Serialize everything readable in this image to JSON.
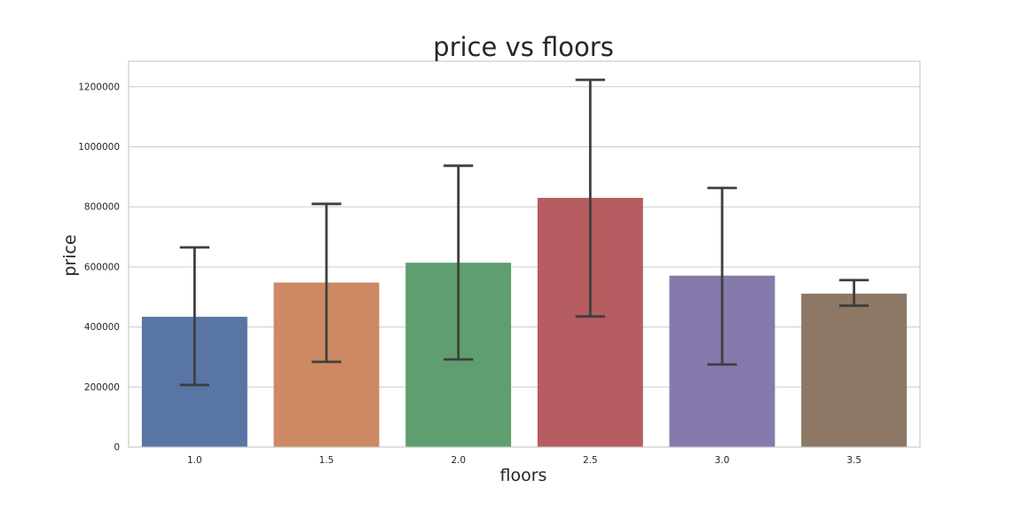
{
  "chart_data": {
    "type": "bar",
    "title": "price vs floors",
    "xlabel": "floors",
    "ylabel": "price",
    "categories": [
      "1.0",
      "1.5",
      "2.0",
      "2.5",
      "3.0",
      "3.5"
    ],
    "values": [
      434000,
      548000,
      614000,
      830000,
      571000,
      511000
    ],
    "error_low": [
      207000,
      284000,
      292000,
      435000,
      275000,
      471000
    ],
    "error_high": [
      665000,
      810000,
      937000,
      1223000,
      863000,
      556000
    ],
    "colors": [
      "#5875a4",
      "#cc8963",
      "#5f9e6e",
      "#b55d60",
      "#857aab",
      "#8d7866"
    ],
    "ylim": [
      0,
      1285000
    ],
    "yticks": [
      0,
      200000,
      400000,
      600000,
      800000,
      1000000,
      1200000
    ],
    "ytick_labels": [
      "0",
      "200000",
      "400000",
      "600000",
      "800000",
      "1000000",
      "1200000"
    ],
    "grid": "horizontal",
    "error_color": "#3f3f3f",
    "grid_color": "#cccccc"
  }
}
